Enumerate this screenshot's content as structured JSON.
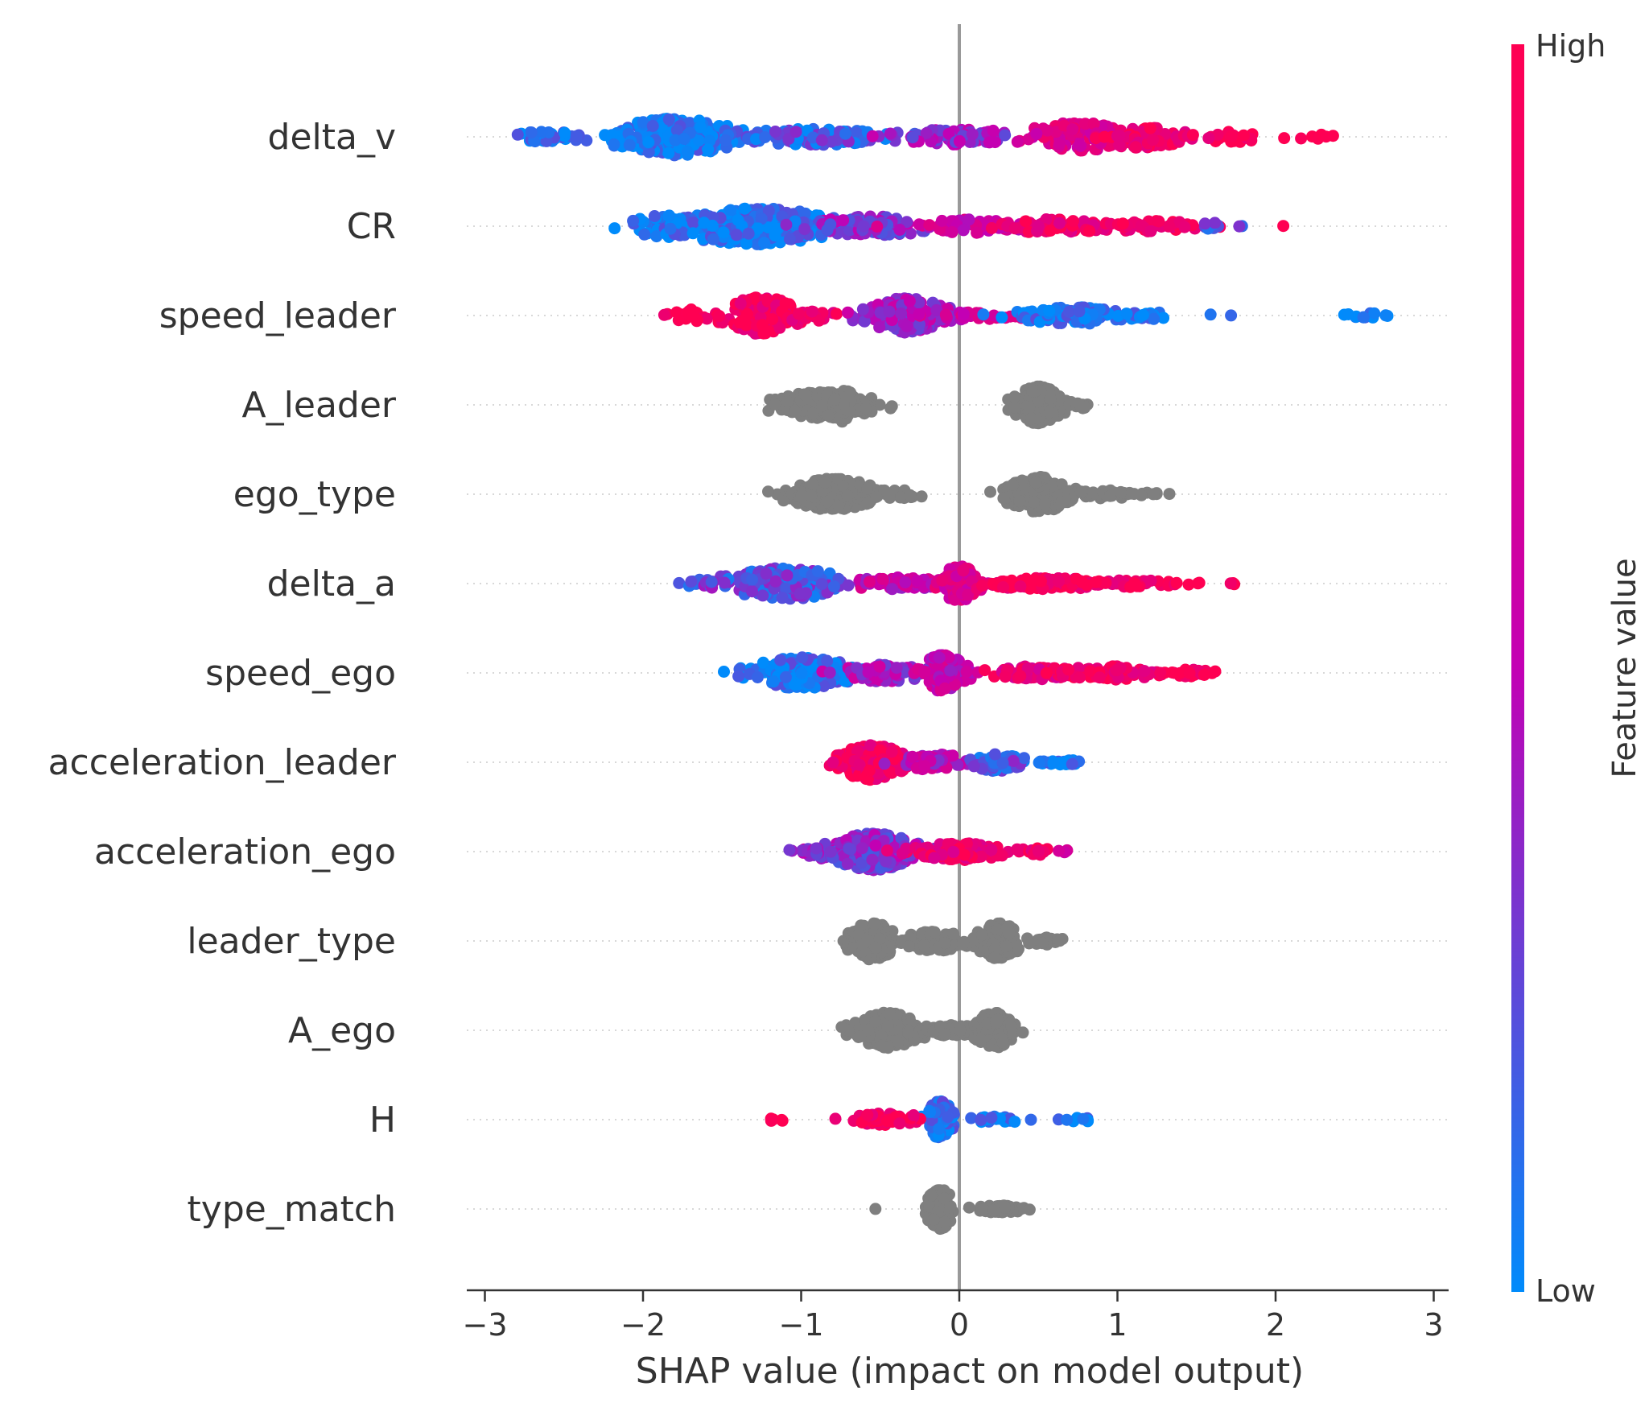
{
  "chart_data": {
    "type": "scatter",
    "subtype": "shap-beeswarm",
    "title": "",
    "xlabel": "SHAP value (impact on model output)",
    "ylabel": "",
    "xlim": [
      -3.1,
      3.1
    ],
    "xticks": [
      -3,
      -2,
      -1,
      0,
      1,
      2,
      3
    ],
    "xtick_labels": [
      "−3",
      "−2",
      "−1",
      "0",
      "1",
      "2",
      "3"
    ],
    "grid": false,
    "colorbar": {
      "label": "Feature value",
      "high_label": "High",
      "low_label": "Low",
      "high_color": "#ff0052",
      "mid_color": "#c300b4",
      "low_color": "#008bfb"
    },
    "missing_color": "#7f7f7f",
    "features": [
      {
        "name": "delta_v",
        "colored": true,
        "clusters": [
          {
            "center": -1.8,
            "spread": 0.35,
            "height": 0.42,
            "n": 260,
            "value": 0.05
          },
          {
            "center": -2.6,
            "spread": 0.2,
            "height": 0.12,
            "n": 30,
            "value": 0.08
          },
          {
            "center": -0.9,
            "spread": 0.5,
            "height": 0.18,
            "n": 110,
            "value": 0.18
          },
          {
            "center": 0.0,
            "spread": 0.35,
            "height": 0.18,
            "n": 70,
            "value": 0.4
          },
          {
            "center": 0.75,
            "spread": 0.3,
            "height": 0.32,
            "n": 90,
            "value": 0.7
          },
          {
            "center": 1.15,
            "spread": 0.25,
            "height": 0.25,
            "n": 70,
            "value": 0.88
          },
          {
            "center": 1.75,
            "spread": 0.35,
            "height": 0.12,
            "n": 25,
            "value": 0.96
          },
          {
            "center": 2.3,
            "spread": 0.1,
            "height": 0.05,
            "n": 6,
            "value": 1.0
          }
        ]
      },
      {
        "name": "CR",
        "colored": true,
        "clusters": [
          {
            "center": -1.3,
            "spread": 0.45,
            "height": 0.42,
            "n": 280,
            "value": 0.07
          },
          {
            "center": -1.85,
            "spread": 0.2,
            "height": 0.25,
            "n": 50,
            "value": 0.05
          },
          {
            "center": -0.55,
            "spread": 0.35,
            "height": 0.22,
            "n": 80,
            "value": 0.35
          },
          {
            "center": 0.1,
            "spread": 0.3,
            "height": 0.16,
            "n": 60,
            "value": 0.6
          },
          {
            "center": 0.6,
            "spread": 0.3,
            "height": 0.16,
            "n": 70,
            "value": 0.85
          },
          {
            "center": 1.2,
            "spread": 0.3,
            "height": 0.12,
            "n": 50,
            "value": 0.92
          },
          {
            "center": 1.65,
            "spread": 0.15,
            "height": 0.08,
            "n": 10,
            "value": 0.15
          },
          {
            "center": 2.05,
            "spread": 0.02,
            "height": 0.02,
            "n": 1,
            "value": 1.0
          }
        ]
      },
      {
        "name": "speed_leader",
        "colored": true,
        "clusters": [
          {
            "center": -1.25,
            "spread": 0.2,
            "height": 0.42,
            "n": 140,
            "value": 0.92
          },
          {
            "center": -1.7,
            "spread": 0.1,
            "height": 0.15,
            "n": 30,
            "value": 1.0
          },
          {
            "center": -0.95,
            "spread": 0.15,
            "height": 0.15,
            "n": 25,
            "value": 0.85
          },
          {
            "center": -0.35,
            "spread": 0.25,
            "height": 0.4,
            "n": 150,
            "value": 0.42
          },
          {
            "center": 0.15,
            "spread": 0.3,
            "height": 0.08,
            "n": 25,
            "value": 0.65
          },
          {
            "center": 0.7,
            "spread": 0.3,
            "height": 0.2,
            "n": 90,
            "value": 0.1
          },
          {
            "center": 1.15,
            "spread": 0.15,
            "height": 0.1,
            "n": 25,
            "value": 0.05
          },
          {
            "center": 1.65,
            "spread": 0.1,
            "height": 0.03,
            "n": 2,
            "value": 0.03
          },
          {
            "center": 2.6,
            "spread": 0.15,
            "height": 0.05,
            "n": 12,
            "value": 0.02
          }
        ]
      },
      {
        "name": "A_leader",
        "colored": false,
        "clusters": [
          {
            "center": -0.85,
            "spread": 0.3,
            "height": 0.3,
            "n": 220,
            "value": null
          },
          {
            "center": -0.75,
            "spread": 0.08,
            "height": 0.4,
            "n": 40,
            "value": null
          },
          {
            "center": 0.5,
            "spread": 0.13,
            "height": 0.42,
            "n": 240,
            "value": null
          },
          {
            "center": 0.75,
            "spread": 0.06,
            "height": 0.1,
            "n": 10,
            "value": null
          }
        ]
      },
      {
        "name": "ego_type",
        "colored": false,
        "clusters": [
          {
            "center": -0.8,
            "spread": 0.25,
            "height": 0.35,
            "n": 210,
            "value": null
          },
          {
            "center": -0.4,
            "spread": 0.15,
            "height": 0.1,
            "n": 20,
            "value": null
          },
          {
            "center": 0.5,
            "spread": 0.18,
            "height": 0.4,
            "n": 210,
            "value": null
          },
          {
            "center": 0.95,
            "spread": 0.2,
            "height": 0.1,
            "n": 30,
            "value": null
          },
          {
            "center": 1.2,
            "spread": 0.1,
            "height": 0.05,
            "n": 6,
            "value": null
          }
        ]
      },
      {
        "name": "delta_a",
        "colored": true,
        "clusters": [
          {
            "center": -1.1,
            "spread": 0.35,
            "height": 0.35,
            "n": 180,
            "value": 0.22
          },
          {
            "center": -1.6,
            "spread": 0.1,
            "height": 0.1,
            "n": 15,
            "value": 0.25
          },
          {
            "center": -0.4,
            "spread": 0.3,
            "height": 0.14,
            "n": 70,
            "value": 0.55
          },
          {
            "center": 0.0,
            "spread": 0.1,
            "height": 0.4,
            "n": 130,
            "value": 0.7
          },
          {
            "center": 0.55,
            "spread": 0.35,
            "height": 0.13,
            "n": 110,
            "value": 0.92
          },
          {
            "center": 1.1,
            "spread": 0.25,
            "height": 0.08,
            "n": 45,
            "value": 0.95
          },
          {
            "center": 1.6,
            "spread": 0.15,
            "height": 0.05,
            "n": 5,
            "value": 1.0
          }
        ]
      },
      {
        "name": "speed_ego",
        "colored": true,
        "clusters": [
          {
            "center": -1.0,
            "spread": 0.3,
            "height": 0.35,
            "n": 180,
            "value": 0.08
          },
          {
            "center": -1.5,
            "spread": 0.03,
            "height": 0.03,
            "n": 1,
            "value": 0.05
          },
          {
            "center": -0.45,
            "spread": 0.25,
            "height": 0.2,
            "n": 80,
            "value": 0.45
          },
          {
            "center": -0.1,
            "spread": 0.12,
            "height": 0.42,
            "n": 110,
            "value": 0.55
          },
          {
            "center": 0.45,
            "spread": 0.25,
            "height": 0.15,
            "n": 60,
            "value": 0.8
          },
          {
            "center": 0.95,
            "spread": 0.3,
            "height": 0.15,
            "n": 70,
            "value": 0.9
          },
          {
            "center": 1.45,
            "spread": 0.15,
            "height": 0.08,
            "n": 20,
            "value": 0.95
          }
        ]
      },
      {
        "name": "acceleration_leader",
        "colored": true,
        "clusters": [
          {
            "center": -0.55,
            "spread": 0.18,
            "height": 0.4,
            "n": 230,
            "value": 0.9
          },
          {
            "center": -0.15,
            "spread": 0.2,
            "height": 0.18,
            "n": 80,
            "value": 0.5
          },
          {
            "center": 0.25,
            "spread": 0.15,
            "height": 0.2,
            "n": 50,
            "value": 0.2
          },
          {
            "center": 0.65,
            "spread": 0.15,
            "height": 0.05,
            "n": 25,
            "value": 0.05
          }
        ]
      },
      {
        "name": "acceleration_ego",
        "colored": true,
        "clusters": [
          {
            "center": -0.55,
            "spread": 0.25,
            "height": 0.42,
            "n": 240,
            "value": 0.35
          },
          {
            "center": -0.95,
            "spread": 0.12,
            "height": 0.1,
            "n": 20,
            "value": 0.4
          },
          {
            "center": 0.0,
            "spread": 0.25,
            "height": 0.2,
            "n": 90,
            "value": 0.85
          },
          {
            "center": 0.45,
            "spread": 0.15,
            "height": 0.08,
            "n": 20,
            "value": 0.9
          },
          {
            "center": 0.65,
            "spread": 0.05,
            "height": 0.04,
            "n": 4,
            "value": 0.7
          }
        ]
      },
      {
        "name": "leader_type",
        "colored": false,
        "clusters": [
          {
            "center": -0.55,
            "spread": 0.13,
            "height": 0.42,
            "n": 180,
            "value": null
          },
          {
            "center": -0.15,
            "spread": 0.2,
            "height": 0.22,
            "n": 100,
            "value": null
          },
          {
            "center": 0.25,
            "spread": 0.12,
            "height": 0.4,
            "n": 130,
            "value": null
          },
          {
            "center": 0.55,
            "spread": 0.1,
            "height": 0.1,
            "n": 20,
            "value": null
          }
        ]
      },
      {
        "name": "A_ego",
        "colored": false,
        "clusters": [
          {
            "center": -0.45,
            "spread": 0.18,
            "height": 0.4,
            "n": 200,
            "value": null
          },
          {
            "center": -0.05,
            "spread": 0.15,
            "height": 0.12,
            "n": 60,
            "value": null
          },
          {
            "center": 0.22,
            "spread": 0.1,
            "height": 0.4,
            "n": 180,
            "value": null
          }
        ]
      },
      {
        "name": "H",
        "colored": true,
        "clusters": [
          {
            "center": -0.12,
            "spread": 0.07,
            "height": 0.42,
            "n": 120,
            "value": 0.1
          },
          {
            "center": -0.45,
            "spread": 0.2,
            "height": 0.15,
            "n": 60,
            "value": 0.95
          },
          {
            "center": -1.15,
            "spread": 0.08,
            "height": 0.04,
            "n": 5,
            "value": 1.0
          },
          {
            "center": 0.25,
            "spread": 0.15,
            "height": 0.07,
            "n": 25,
            "value": 0.05
          },
          {
            "center": 0.75,
            "spread": 0.12,
            "height": 0.04,
            "n": 8,
            "value": 0.02
          }
        ]
      },
      {
        "name": "type_match",
        "colored": false,
        "clusters": [
          {
            "center": -0.12,
            "spread": 0.07,
            "height": 0.45,
            "n": 150,
            "value": null
          },
          {
            "center": 0.25,
            "spread": 0.15,
            "height": 0.08,
            "n": 60,
            "value": null
          },
          {
            "center": -0.52,
            "spread": 0.01,
            "height": 0.01,
            "n": 1,
            "value": null
          }
        ]
      }
    ]
  }
}
